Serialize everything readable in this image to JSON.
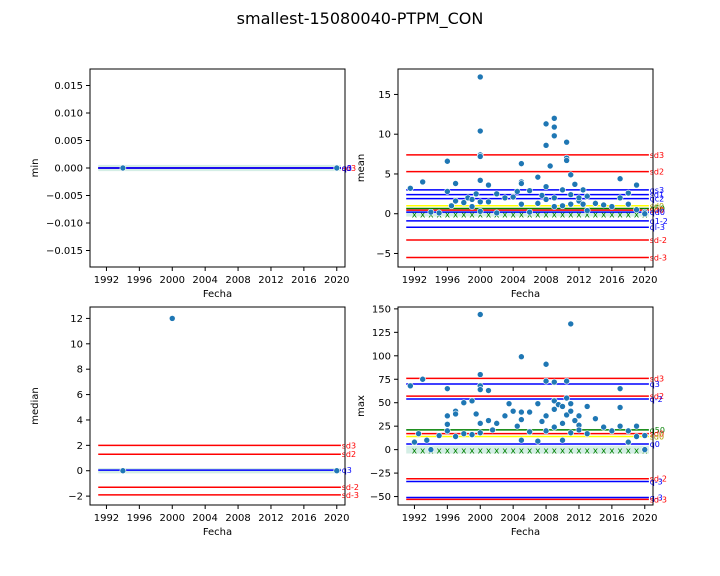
{
  "figure_title": "smallest-15080040-PTPM_CON",
  "colors": {
    "point": "#1f77b4",
    "sd": "#ff0000",
    "q": "#0000ff",
    "green": "#008000",
    "yellow": "#ffff00",
    "band": "#aaddcc"
  },
  "chart_data": [
    {
      "id": "min",
      "type": "scatter",
      "xlabel": "Fecha",
      "ylabel": "min",
      "xlim": [
        1990,
        2021
      ],
      "ylim": [
        -0.018,
        0.018
      ],
      "xticks": [
        1992,
        1996,
        2000,
        2004,
        2008,
        2012,
        2016,
        2020
      ],
      "yticks": [
        -0.015,
        -0.01,
        -0.005,
        0.0,
        0.005,
        0.01,
        0.015
      ],
      "ytick_labels": [
        "−0.015",
        "−0.010",
        "−0.005",
        "0.000",
        "0.005",
        "0.010",
        "0.015"
      ],
      "points": [
        [
          1994,
          0
        ],
        [
          2020,
          0
        ]
      ],
      "band": [
        -0.0002,
        0.0002
      ],
      "hlines": [
        {
          "label": "sd3",
          "y": 0,
          "color": "#ff0000"
        },
        {
          "label": "q3",
          "y": 0,
          "color": "#0000ff"
        },
        {
          "label": "q0",
          "y": 0,
          "color": "#0000ff"
        }
      ],
      "hline_labels": [
        "qd1",
        "sd0",
        "q3"
      ]
    },
    {
      "id": "mean",
      "type": "scatter",
      "xlabel": "Fecha",
      "ylabel": "mean",
      "xlim": [
        1990,
        2021
      ],
      "ylim": [
        -6.7,
        18.2
      ],
      "xticks": [
        1992,
        1996,
        2000,
        2004,
        2008,
        2012,
        2016,
        2020
      ],
      "yticks": [
        -5,
        0,
        5,
        10,
        15
      ],
      "ytick_labels": [
        "−5",
        "0",
        "5",
        "10",
        "15"
      ],
      "points": [
        [
          1991.5,
          3.2
        ],
        [
          1993,
          4.0
        ],
        [
          1994,
          0.2
        ],
        [
          1995,
          0.1
        ],
        [
          1996,
          6.6
        ],
        [
          1996,
          2.8
        ],
        [
          1996.5,
          1.0
        ],
        [
          1997,
          3.8
        ],
        [
          1997,
          1.6
        ],
        [
          1998,
          1.4
        ],
        [
          1998.5,
          2.0
        ],
        [
          1999,
          0.9
        ],
        [
          1999,
          1.8
        ],
        [
          1999.5,
          2.5
        ],
        [
          2000,
          17.2
        ],
        [
          2000,
          10.4
        ],
        [
          2000,
          7.4
        ],
        [
          2000,
          7.2
        ],
        [
          2000,
          4.2
        ],
        [
          2000,
          1.5
        ],
        [
          2000,
          0.3
        ],
        [
          2001,
          3.6
        ],
        [
          2001,
          1.5
        ],
        [
          2002,
          2.5
        ],
        [
          2002,
          0.1
        ],
        [
          2003,
          2.0
        ],
        [
          2004,
          2.1
        ],
        [
          2004.5,
          2.8
        ],
        [
          2005,
          6.3
        ],
        [
          2005,
          4.0
        ],
        [
          2005,
          3.8
        ],
        [
          2005,
          1.2
        ],
        [
          2006,
          2.9
        ],
        [
          2006,
          0.2
        ],
        [
          2007,
          4.6
        ],
        [
          2007,
          1.3
        ],
        [
          2007.5,
          2.3
        ],
        [
          2008,
          11.3
        ],
        [
          2008,
          8.6
        ],
        [
          2008,
          3.4
        ],
        [
          2008,
          1.8
        ],
        [
          2008.5,
          6.0
        ],
        [
          2009,
          12.0
        ],
        [
          2009,
          10.9
        ],
        [
          2009,
          9.8
        ],
        [
          2009,
          2.0
        ],
        [
          2009,
          0.9
        ],
        [
          2010,
          3.0
        ],
        [
          2010,
          1.0
        ],
        [
          2010.5,
          9.0
        ],
        [
          2010.5,
          7.0
        ],
        [
          2010.5,
          6.7
        ],
        [
          2011,
          4.9
        ],
        [
          2011,
          2.4
        ],
        [
          2011,
          1.2
        ],
        [
          2011.5,
          3.7
        ],
        [
          2012,
          1.6
        ],
        [
          2012,
          2.0
        ],
        [
          2012.5,
          3.0
        ],
        [
          2012.5,
          1.2
        ],
        [
          2013,
          2.2
        ],
        [
          2013,
          0.4
        ],
        [
          2014,
          1.3
        ],
        [
          2015,
          1.1
        ],
        [
          2016,
          0.9
        ],
        [
          2017,
          4.4
        ],
        [
          2017,
          2.0
        ],
        [
          2018,
          2.6
        ],
        [
          2018,
          1.2
        ],
        [
          2019,
          3.6
        ],
        [
          2019,
          0.5
        ],
        [
          2020,
          0.2
        ],
        [
          2020,
          0.0
        ]
      ],
      "band": [
        -0.1,
        0.1
      ],
      "hlines": [
        {
          "label": "sd3",
          "y": 7.4,
          "color": "#ff0000"
        },
        {
          "label": "sd2",
          "y": 5.3,
          "color": "#ff0000"
        },
        {
          "label": "qs3",
          "y": 3.0,
          "color": "#0000ff"
        },
        {
          "label": "sd1",
          "y": 2.4,
          "color": "#0000ff"
        },
        {
          "label": "qc2",
          "y": 1.9,
          "color": "#0000ff"
        },
        {
          "label": "sd0",
          "y": 1.0,
          "color": "#ffff00"
        },
        {
          "label": "q50",
          "y": 0.65,
          "color": "#008000"
        },
        {
          "label": "sd0",
          "y": 0.45,
          "color": "#ff0000"
        },
        {
          "label": "qd0",
          "y": 0.2,
          "color": "#0000ff"
        },
        {
          "label": "q1-2",
          "y": -0.9,
          "color": "#0000ff"
        },
        {
          "label": "ql-3",
          "y": -1.7,
          "color": "#0000ff"
        },
        {
          "label": "sd-2",
          "y": -3.3,
          "color": "#ff0000"
        },
        {
          "label": "sd-3",
          "y": -5.5,
          "color": "#ff0000"
        }
      ],
      "rug": [
        1992,
        1993,
        1994,
        1995,
        1996,
        1997,
        1998,
        1999,
        2000,
        2001,
        2002,
        2003,
        2004,
        2005,
        2006,
        2007,
        2008,
        2009,
        2010,
        2011,
        2012,
        2013,
        2014,
        2015,
        2016,
        2017,
        2018,
        2019,
        2020
      ]
    },
    {
      "id": "median",
      "type": "scatter",
      "xlabel": "Fecha",
      "ylabel": "median",
      "xlim": [
        1990,
        2021
      ],
      "ylim": [
        -2.7,
        12.9
      ],
      "xticks": [
        1992,
        1996,
        2000,
        2004,
        2008,
        2012,
        2016,
        2020
      ],
      "yticks": [
        -2,
        0,
        2,
        4,
        6,
        8,
        10,
        12
      ],
      "ytick_labels": [
        "−2",
        "0",
        "2",
        "4",
        "6",
        "8",
        "10",
        "12"
      ],
      "points": [
        [
          1994,
          0
        ],
        [
          2000,
          12
        ],
        [
          2020,
          0
        ]
      ],
      "band": [
        -0.05,
        0.05
      ],
      "hlines": [
        {
          "label": "sd3",
          "y": 2.0,
          "color": "#ff0000"
        },
        {
          "label": "sd2",
          "y": 1.3,
          "color": "#ff0000"
        },
        {
          "label": "q3",
          "y": 0.05,
          "color": "#0000ff"
        },
        {
          "label": "sd-2",
          "y": -1.3,
          "color": "#ff0000"
        },
        {
          "label": "sd-3",
          "y": -1.9,
          "color": "#ff0000"
        }
      ]
    },
    {
      "id": "max",
      "type": "scatter",
      "xlabel": "Fecha",
      "ylabel": "max",
      "xlim": [
        1990,
        2021
      ],
      "ylim": [
        -59,
        152
      ],
      "xticks": [
        1992,
        1996,
        2000,
        2004,
        2008,
        2012,
        2016,
        2020
      ],
      "yticks": [
        -50,
        -25,
        0,
        25,
        50,
        75,
        100,
        125,
        150
      ],
      "ytick_labels": [
        "−50",
        "−25",
        "0",
        "25",
        "50",
        "75",
        "100",
        "125",
        "150"
      ],
      "points": [
        [
          1991.5,
          68
        ],
        [
          1992,
          8
        ],
        [
          1992.5,
          17
        ],
        [
          1993,
          75
        ],
        [
          1993.5,
          10
        ],
        [
          1994,
          0
        ],
        [
          1995,
          15
        ],
        [
          1996,
          36
        ],
        [
          1996,
          27
        ],
        [
          1996,
          20
        ],
        [
          1996,
          65
        ],
        [
          1997,
          41
        ],
        [
          1997,
          38
        ],
        [
          1997,
          14
        ],
        [
          1998,
          50
        ],
        [
          1998,
          17
        ],
        [
          1999,
          52
        ],
        [
          1999,
          16
        ],
        [
          1999.5,
          38
        ],
        [
          2000,
          144
        ],
        [
          2000,
          80
        ],
        [
          2000,
          68
        ],
        [
          2000,
          64
        ],
        [
          2000,
          28
        ],
        [
          2000,
          18
        ],
        [
          2001,
          31
        ],
        [
          2001,
          63
        ],
        [
          2001.5,
          21
        ],
        [
          2002,
          28
        ],
        [
          2003,
          36
        ],
        [
          2003.5,
          49
        ],
        [
          2004,
          41
        ],
        [
          2004.5,
          25
        ],
        [
          2005,
          99
        ],
        [
          2005,
          40
        ],
        [
          2005,
          32
        ],
        [
          2005,
          10
        ],
        [
          2006,
          40
        ],
        [
          2006,
          19
        ],
        [
          2007,
          49
        ],
        [
          2007,
          9
        ],
        [
          2007.5,
          30
        ],
        [
          2008,
          91
        ],
        [
          2008,
          73
        ],
        [
          2008,
          36
        ],
        [
          2008,
          20
        ],
        [
          2009,
          72
        ],
        [
          2009,
          52
        ],
        [
          2009,
          43
        ],
        [
          2009,
          24
        ],
        [
          2009.5,
          48
        ],
        [
          2010,
          46
        ],
        [
          2010,
          28
        ],
        [
          2010,
          10
        ],
        [
          2010.5,
          73
        ],
        [
          2010.5,
          55
        ],
        [
          2010.5,
          37
        ],
        [
          2011,
          134
        ],
        [
          2011,
          49
        ],
        [
          2011,
          41
        ],
        [
          2011,
          18
        ],
        [
          2011.5,
          31
        ],
        [
          2012,
          36
        ],
        [
          2012,
          26
        ],
        [
          2012,
          21
        ],
        [
          2013,
          46
        ],
        [
          2013,
          17
        ],
        [
          2014,
          33
        ],
        [
          2015,
          24
        ],
        [
          2016,
          20
        ],
        [
          2017,
          65
        ],
        [
          2017,
          45
        ],
        [
          2017,
          25
        ],
        [
          2018,
          20
        ],
        [
          2018,
          8
        ],
        [
          2019,
          25
        ],
        [
          2019,
          14
        ],
        [
          2020,
          15
        ],
        [
          2020,
          0
        ]
      ],
      "band": [
        -2,
        2
      ],
      "hlines": [
        {
          "label": "sd3",
          "y": 76,
          "color": "#ff0000"
        },
        {
          "label": "q3",
          "y": 70,
          "color": "#0000ff"
        },
        {
          "label": "sd2",
          "y": 57,
          "color": "#ff0000"
        },
        {
          "label": "q-2",
          "y": 54,
          "color": "#0000ff"
        },
        {
          "label": "q50",
          "y": 21,
          "color": "#008000"
        },
        {
          "label": "sd0",
          "y": 17,
          "color": "#ff0000"
        },
        {
          "label": "sd0",
          "y": 14,
          "color": "#ffff00"
        },
        {
          "label": "q0",
          "y": 6,
          "color": "#0000ff"
        },
        {
          "label": "sd-2",
          "y": -31,
          "color": "#ff0000"
        },
        {
          "label": "q-3",
          "y": -34,
          "color": "#0000ff"
        },
        {
          "label": "q-3",
          "y": -51,
          "color": "#0000ff"
        },
        {
          "label": "sd-3",
          "y": -53,
          "color": "#ff0000"
        }
      ],
      "rug": [
        1992,
        1993,
        1994,
        1995,
        1996,
        1997,
        1998,
        1999,
        2000,
        2001,
        2002,
        2003,
        2004,
        2005,
        2006,
        2007,
        2008,
        2009,
        2010,
        2011,
        2012,
        2013,
        2014,
        2015,
        2016,
        2017,
        2018,
        2019,
        2020
      ]
    }
  ]
}
